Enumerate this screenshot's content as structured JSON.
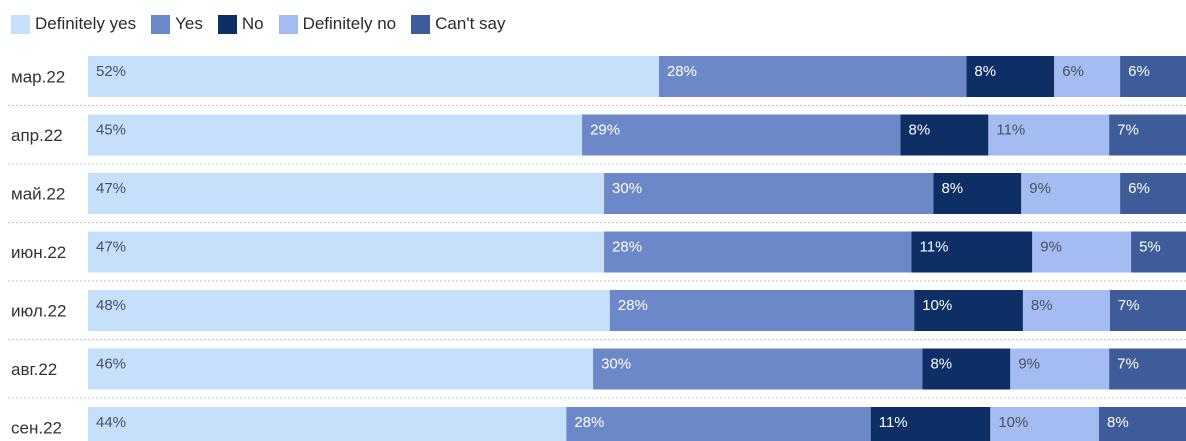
{
  "chart_data": {
    "type": "bar",
    "orientation": "horizontal",
    "stacked": true,
    "stack_mode": "percent",
    "legend_position": "top-left",
    "categories": [
      "мар.22",
      "апр.22",
      "май.22",
      "июн.22",
      "июл.22",
      "авг.22",
      "сен.22"
    ],
    "series": [
      {
        "name": "Definitely yes",
        "color": "#c6e0fb",
        "label_color": "#4a5160",
        "values": [
          52,
          45,
          47,
          47,
          48,
          46,
          44
        ]
      },
      {
        "name": "Yes",
        "color": "#6d88c9",
        "label_color": "#ffffff",
        "values": [
          28,
          29,
          30,
          28,
          28,
          30,
          28
        ]
      },
      {
        "name": "No",
        "color": "#0d2f66",
        "label_color": "#ffffff",
        "values": [
          8,
          8,
          8,
          11,
          10,
          8,
          11
        ]
      },
      {
        "name": "Definitely no",
        "color": "#a4bcf1",
        "label_color": "#4a5160",
        "values": [
          6,
          11,
          9,
          9,
          8,
          9,
          10
        ]
      },
      {
        "name": "Can't say",
        "color": "#3e5c9a",
        "label_color": "#ffffff",
        "values": [
          6,
          7,
          6,
          5,
          7,
          7,
          8
        ]
      }
    ],
    "value_suffix": "%"
  }
}
